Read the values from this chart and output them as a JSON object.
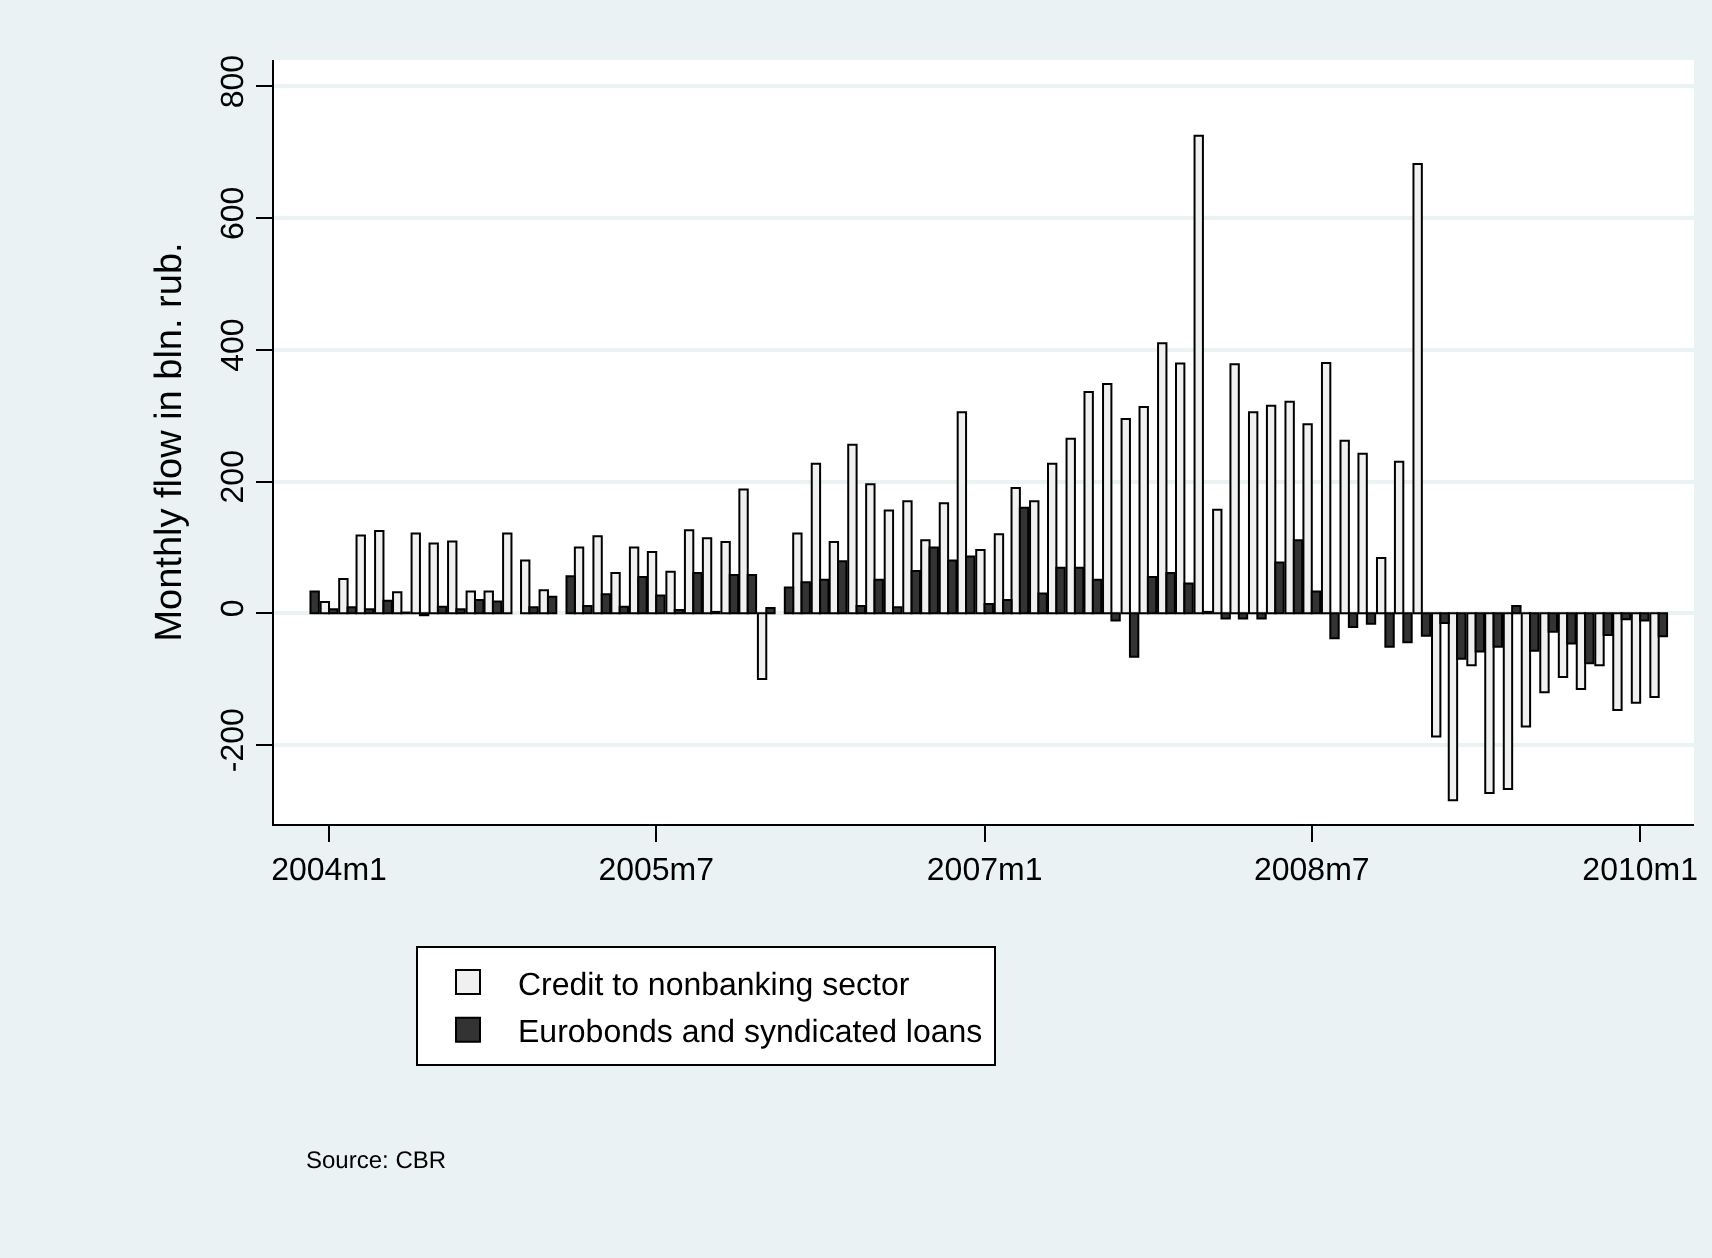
{
  "chart_data": {
    "type": "bar",
    "ylabel": "Monthly flow in bln. rub.",
    "x": [
      "2003-12",
      "2004-01",
      "2004-02",
      "2004-03",
      "2004-04",
      "2004-05",
      "2004-06",
      "2004-07",
      "2004-08",
      "2004-09",
      "2004-10",
      "2004-11",
      "2004-12",
      "2005-01",
      "2005-02",
      "2005-03",
      "2005-04",
      "2005-05",
      "2005-06",
      "2005-07",
      "2005-08",
      "2005-09",
      "2005-10",
      "2005-11",
      "2005-12",
      "2006-01",
      "2006-02",
      "2006-03",
      "2006-04",
      "2006-05",
      "2006-06",
      "2006-07",
      "2006-08",
      "2006-09",
      "2006-10",
      "2006-11",
      "2006-12",
      "2007-01",
      "2007-02",
      "2007-03",
      "2007-04",
      "2007-05",
      "2007-06",
      "2007-07",
      "2007-08",
      "2007-09",
      "2007-10",
      "2007-11",
      "2007-12",
      "2008-01",
      "2008-02",
      "2008-03",
      "2008-04",
      "2008-05",
      "2008-06",
      "2008-07",
      "2008-08",
      "2008-09",
      "2008-10",
      "2008-11",
      "2008-12",
      "2009-01",
      "2009-02",
      "2009-03",
      "2009-04",
      "2009-05",
      "2009-06",
      "2009-07",
      "2009-08",
      "2009-09",
      "2009-10",
      "2009-11",
      "2009-12",
      "2010-01",
      "2010-02"
    ],
    "series": [
      {
        "name": "Credit to nonbanking sector",
        "color": "#f0f0f0",
        "values": [
          null,
          17,
          52,
          118,
          125,
          32,
          121,
          106,
          109,
          33,
          33,
          121,
          80,
          35,
          null,
          100,
          117,
          61,
          100,
          93,
          63,
          126,
          114,
          108,
          188,
          -100,
          null,
          121,
          227,
          108,
          256,
          196,
          156,
          170,
          111,
          167,
          305,
          96,
          120,
          190,
          170,
          227,
          265,
          336,
          348,
          295,
          313,
          410,
          379,
          725,
          157,
          378,
          305,
          315,
          321,
          287,
          380,
          262,
          242,
          84,
          230,
          682,
          -187,
          -284,
          -79,
          -273,
          -267,
          -172,
          -120,
          -97,
          -115,
          -79,
          -147,
          -136,
          -127
        ]
      },
      {
        "name": "Eurobonds and syndicated loans",
        "color": "#333333",
        "values": [
          33,
          6,
          9,
          6,
          19,
          1,
          -3,
          10,
          6,
          20,
          18,
          null,
          9,
          25,
          56,
          11,
          29,
          10,
          55,
          27,
          5,
          61,
          2,
          58,
          58,
          8,
          39,
          47,
          51,
          79,
          11,
          51,
          9,
          64,
          100,
          80,
          86,
          14,
          20,
          160,
          30,
          69,
          69,
          51,
          -11,
          -66,
          55,
          61,
          45,
          2,
          -8,
          -8,
          -8,
          77,
          111,
          33,
          -38,
          -21,
          -16,
          -51,
          -44,
          -34,
          -15,
          -69,
          -58,
          -51,
          11,
          -57,
          -28,
          -46,
          -76,
          -33,
          -9,
          -11,
          -35
        ]
      }
    ],
    "xlim": [
      "2003-10",
      "2010-04"
    ],
    "xticks": [
      {
        "value": "2004-01",
        "label": "2004m1"
      },
      {
        "value": "2005-07",
        "label": "2005m7"
      },
      {
        "value": "2007-01",
        "label": "2007m1"
      },
      {
        "value": "2008-07",
        "label": "2008m7"
      },
      {
        "value": "2010-01",
        "label": "2010m1"
      }
    ],
    "ylim": [
      -320,
      840
    ],
    "yticks": [
      -200,
      0,
      200,
      400,
      600,
      800
    ],
    "grid": "y",
    "legend": "bottom",
    "annotations": [
      "Source: CBR"
    ]
  }
}
